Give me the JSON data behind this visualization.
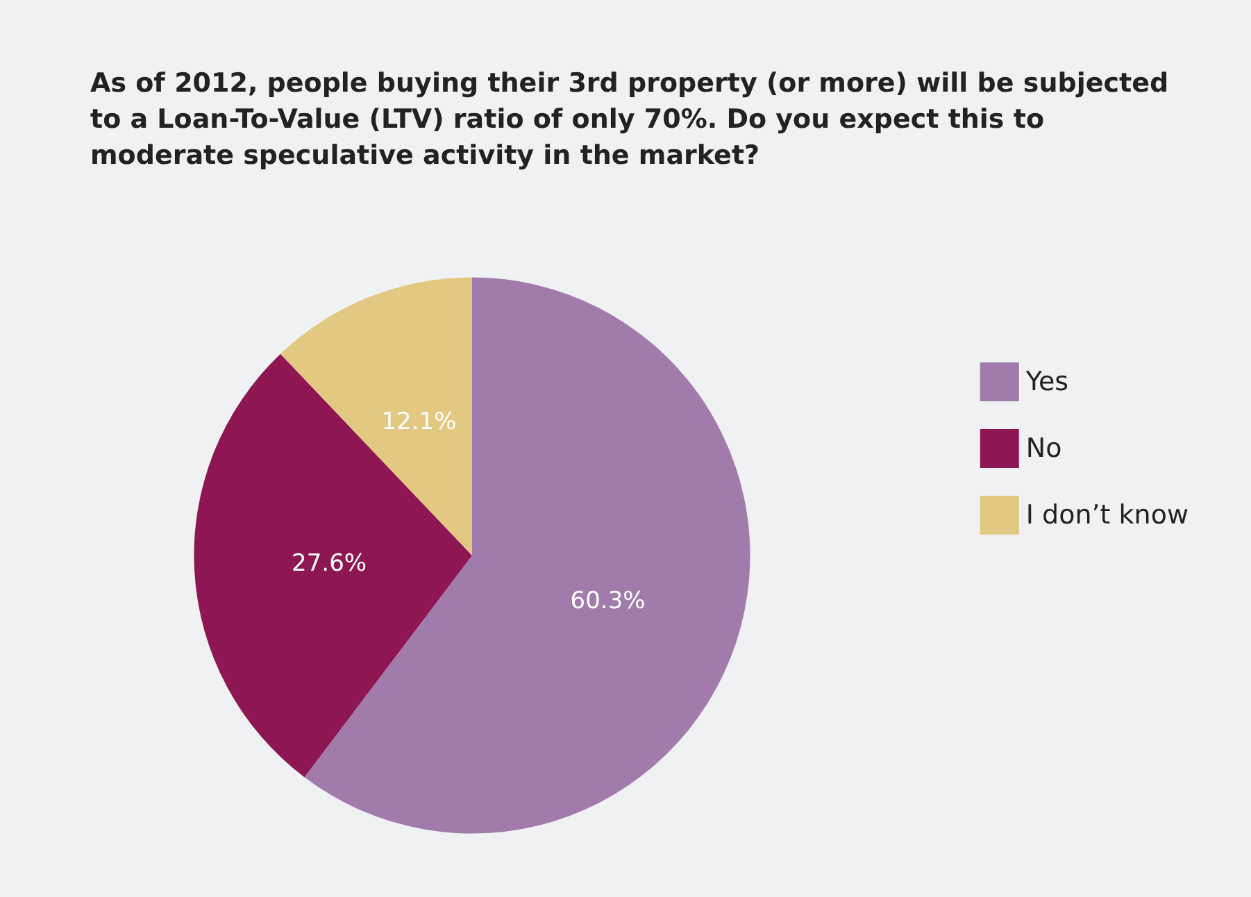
{
  "chart_data": {
    "type": "pie",
    "title": "As of 2012, people buying their 3rd property (or more) will be subjected to a Loan-To-Value (LTV) ratio of only 70%. Do you expect this to moderate speculative activity in the market?",
    "categories": [
      "Yes",
      "No",
      "I don’t know"
    ],
    "values": [
      60.3,
      27.6,
      12.1
    ],
    "value_labels": [
      "60.3%",
      "27.6%",
      "12.1%"
    ],
    "colors": [
      "#a07bac",
      "#8e1753",
      "#e3c882"
    ],
    "legend": "right"
  }
}
